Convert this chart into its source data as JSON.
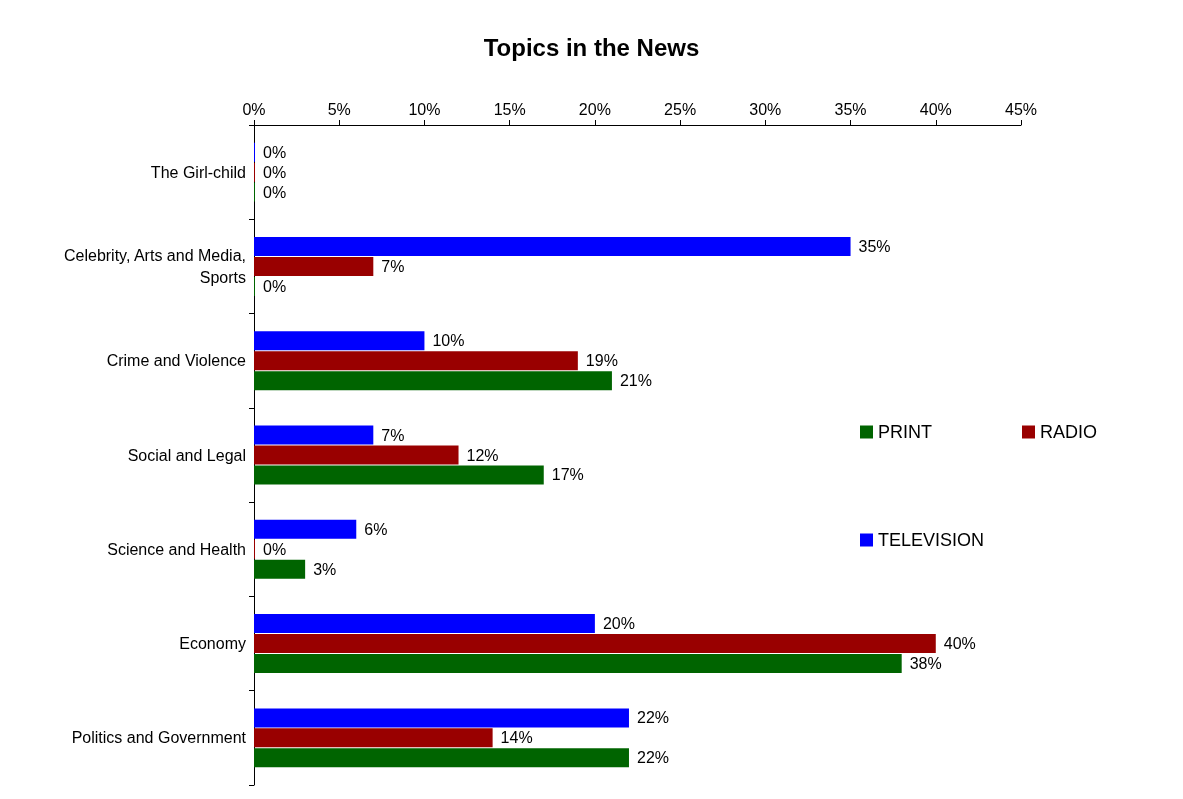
{
  "chart_data": {
    "type": "bar",
    "orientation": "horizontal",
    "title": "Topics in the News",
    "categories": [
      "The Girl-child",
      "Celebrity, Arts and Media, Sports",
      "Crime and Violence",
      "Social and Legal",
      "Science and Health",
      "Economy",
      "Politics and Government"
    ],
    "series": [
      {
        "name": "PRINT",
        "color": "#006400",
        "values": [
          0,
          0,
          21,
          17,
          3,
          38,
          22
        ],
        "value_labels": [
          "0%",
          "0%",
          "21%",
          "17%",
          "3%",
          "38%",
          "22%"
        ]
      },
      {
        "name": "RADIO",
        "color": "#990000",
        "values": [
          0,
          7,
          19,
          12,
          0,
          40,
          14
        ],
        "value_labels": [
          "0%",
          "7%",
          "19%",
          "12%",
          "0%",
          "40%",
          "14%"
        ]
      },
      {
        "name": "TELEVISION",
        "color": "#0000ff",
        "values": [
          0,
          35,
          10,
          7,
          6,
          20,
          22
        ],
        "value_labels": [
          "0%",
          "35%",
          "10%",
          "7%",
          "6%",
          "20%",
          "22%"
        ]
      }
    ],
    "xlim": [
      0,
      45
    ],
    "xticks": [
      {
        "value": 0,
        "label": "0%"
      },
      {
        "value": 5,
        "label": "5%"
      },
      {
        "value": 10,
        "label": "10%"
      },
      {
        "value": 15,
        "label": "15%"
      },
      {
        "value": 20,
        "label": "20%"
      },
      {
        "value": 25,
        "label": "25%"
      },
      {
        "value": 30,
        "label": "30%"
      },
      {
        "value": 35,
        "label": "35%"
      },
      {
        "value": 40,
        "label": "40%"
      },
      {
        "value": 45,
        "label": "45%"
      }
    ],
    "grid": false,
    "legend": "right"
  }
}
